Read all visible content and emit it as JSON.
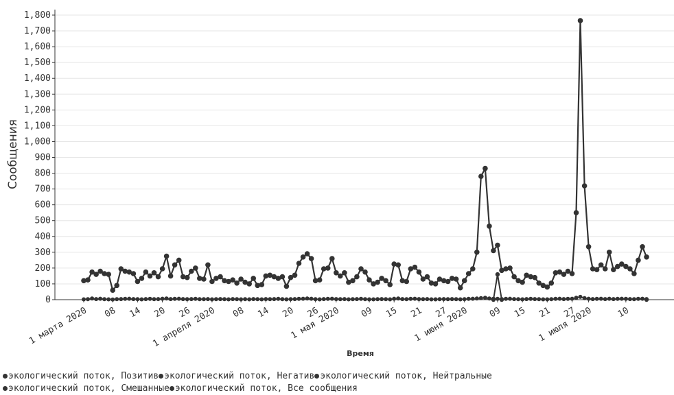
{
  "chart_data": {
    "type": "line",
    "ylabel": "Сообщения",
    "xlabel": "Время",
    "ylim": [
      0,
      1800
    ],
    "yticks": [
      0,
      100,
      200,
      300,
      400,
      500,
      600,
      700,
      800,
      900,
      1000,
      1100,
      1200,
      1300,
      1400,
      1500,
      1600,
      1700,
      1800
    ],
    "ytick_labels": [
      "0",
      "100",
      "200",
      "300",
      "400",
      "500",
      "600",
      "700",
      "800",
      "900",
      "1,000",
      "1,100",
      "1,200",
      "1,300",
      "1,400",
      "1,500",
      "1,600",
      "1,700",
      "1,800"
    ],
    "x_start": "2020-03-01",
    "xlim": [
      0,
      136
    ],
    "xticks": [
      {
        "x": 0,
        "label": "1 марта 2020"
      },
      {
        "x": 7,
        "label": "08"
      },
      {
        "x": 13,
        "label": "14"
      },
      {
        "x": 19,
        "label": "20"
      },
      {
        "x": 25,
        "label": "26"
      },
      {
        "x": 31,
        "label": "1 апреля 2020"
      },
      {
        "x": 38,
        "label": "08"
      },
      {
        "x": 44,
        "label": "14"
      },
      {
        "x": 50,
        "label": "20"
      },
      {
        "x": 56,
        "label": "26"
      },
      {
        "x": 61,
        "label": "1 мая 2020"
      },
      {
        "x": 69,
        "label": "09"
      },
      {
        "x": 75,
        "label": "15"
      },
      {
        "x": 81,
        "label": "21"
      },
      {
        "x": 87,
        "label": "27"
      },
      {
        "x": 92,
        "label": "1 июня 2020"
      },
      {
        "x": 100,
        "label": "09"
      },
      {
        "x": 106,
        "label": "15"
      },
      {
        "x": 112,
        "label": "21"
      },
      {
        "x": 118,
        "label": "27"
      },
      {
        "x": 122,
        "label": "1 июля 2020"
      },
      {
        "x": 131,
        "label": "10"
      }
    ],
    "grid": true,
    "legend_position": "bottom",
    "legend": [
      "экологический поток, Позитив",
      "экологический поток, Негатив",
      "экологический поток, Нейтральные",
      "экологический поток, Смешанные",
      "экологический поток, Все сообщения"
    ],
    "series": [
      {
        "name": "экологический поток, Все сообщения",
        "values": [
          120,
          125,
          175,
          160,
          180,
          165,
          160,
          60,
          90,
          195,
          180,
          175,
          165,
          115,
          135,
          175,
          150,
          170,
          145,
          195,
          275,
          150,
          220,
          250,
          145,
          140,
          180,
          200,
          135,
          130,
          220,
          115,
          135,
          145,
          120,
          115,
          125,
          105,
          130,
          110,
          100,
          135,
          90,
          95,
          150,
          155,
          145,
          135,
          145,
          85,
          140,
          155,
          230,
          270,
          290,
          260,
          120,
          125,
          195,
          200,
          260,
          170,
          150,
          170,
          110,
          120,
          145,
          195,
          175,
          125,
          100,
          110,
          135,
          120,
          95,
          225,
          220,
          120,
          115,
          195,
          205,
          175,
          130,
          145,
          105,
          100,
          130,
          120,
          115,
          135,
          130,
          75,
          120,
          165,
          195,
          300,
          780,
          830,
          465,
          310,
          345,
          185,
          195,
          200,
          145,
          120,
          110,
          155,
          145,
          140,
          105,
          90,
          80,
          105,
          170,
          175,
          160,
          180,
          165,
          550,
          1765,
          720,
          335,
          195,
          190,
          220,
          195,
          300,
          190,
          210,
          225,
          210,
          195,
          165,
          250,
          335,
          270
        ]
      },
      {
        "name": "экологический поток, Нейтральные",
        "values": [
          null,
          null,
          null,
          null,
          null,
          null,
          null,
          null,
          null,
          null,
          null,
          null,
          null,
          null,
          null,
          null,
          null,
          null,
          null,
          null,
          null,
          null,
          null,
          null,
          null,
          null,
          null,
          null,
          null,
          null,
          null,
          null,
          null,
          null,
          null,
          null,
          null,
          null,
          null,
          null,
          null,
          null,
          null,
          null,
          null,
          null,
          null,
          null,
          null,
          null,
          null,
          null,
          null,
          null,
          null,
          null,
          null,
          null,
          null,
          null,
          null,
          null,
          null,
          null,
          null,
          null,
          null,
          null,
          null,
          null,
          null,
          null,
          null,
          null,
          null,
          null,
          null,
          null,
          null,
          null,
          null,
          null,
          null,
          null,
          null,
          null,
          null,
          null,
          null,
          null,
          null,
          null,
          null,
          null,
          null,
          null,
          null,
          null,
          null,
          0,
          160,
          0,
          null,
          null,
          null,
          null,
          null,
          null,
          null,
          null,
          null,
          null,
          null,
          null,
          null,
          null,
          null,
          null,
          null,
          null,
          null,
          null,
          null,
          null,
          null,
          null,
          null,
          null,
          null,
          null,
          null,
          null,
          null,
          null,
          null,
          null,
          0
        ]
      },
      {
        "name": "экологический поток, Негатив",
        "values": [
          2,
          3,
          8,
          4,
          6,
          3,
          2,
          1,
          3,
          4,
          5,
          6,
          4,
          3,
          2,
          4,
          5,
          3,
          4,
          6,
          8,
          4,
          5,
          6,
          4,
          3,
          4,
          5,
          3,
          3,
          4,
          2,
          3,
          4,
          3,
          2,
          4,
          3,
          2,
          3,
          2,
          4,
          3,
          2,
          4,
          3,
          4,
          5,
          3,
          2,
          3,
          4,
          5,
          6,
          8,
          6,
          3,
          2,
          4,
          5,
          6,
          4,
          3,
          4,
          2,
          3,
          4,
          5,
          3,
          2,
          2,
          3,
          4,
          3,
          2,
          6,
          8,
          4,
          3,
          5,
          6,
          4,
          3,
          4,
          2,
          2,
          3,
          4,
          3,
          4,
          3,
          2,
          3,
          5,
          6,
          8,
          10,
          12,
          8,
          6,
          5,
          4,
          5,
          6,
          4,
          3,
          2,
          4,
          5,
          4,
          3,
          2,
          2,
          3,
          5,
          6,
          4,
          5,
          6,
          12,
          18,
          10,
          6,
          4,
          5,
          6,
          4,
          6,
          4,
          5,
          6,
          5,
          4,
          3,
          5,
          6,
          4
        ]
      }
    ]
  }
}
